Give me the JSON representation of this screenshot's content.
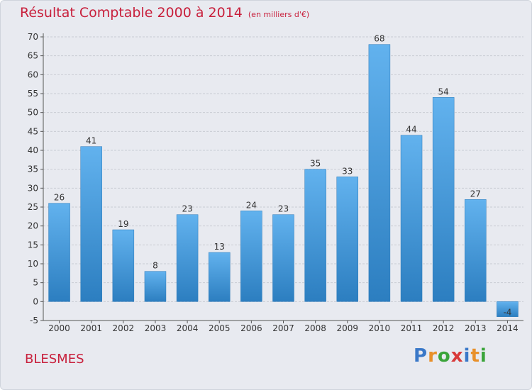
{
  "title": "Résultat Comptable 2000 à 2014",
  "unit_note": "(en milliers d'€)",
  "commune": "BLESMES",
  "logo": {
    "letters": [
      "P",
      "r",
      "o",
      "x",
      "i",
      "t",
      "i"
    ],
    "colors": [
      "#3a78c8",
      "#e8902a",
      "#3aa43a",
      "#d83a3a",
      "#3a78c8",
      "#e8902a",
      "#3aa43a"
    ]
  },
  "colors": {
    "title": "#c8203c",
    "bar_top": "#62b2ee",
    "bar_bottom": "#2c7ec0"
  },
  "chart_data": {
    "type": "bar",
    "title": "Résultat Comptable 2000 à 2014",
    "subtitle": "(en milliers d'€)",
    "categories": [
      "2000",
      "2001",
      "2002",
      "2003",
      "2004",
      "2005",
      "2006",
      "2007",
      "2008",
      "2009",
      "2010",
      "2011",
      "2012",
      "2013",
      "2014"
    ],
    "values": [
      26,
      41,
      19,
      8,
      23,
      13,
      24,
      23,
      35,
      33,
      68,
      44,
      54,
      27,
      -4
    ],
    "data_labels": [
      "26",
      "41",
      "19",
      "8",
      "23",
      "13",
      "24",
      "23",
      "35",
      "33",
      "68",
      "44",
      "54",
      "27",
      "-4"
    ],
    "ylim": [
      -5,
      70
    ],
    "yticks": [
      -5,
      0,
      5,
      10,
      15,
      20,
      25,
      30,
      35,
      40,
      45,
      50,
      55,
      60,
      65,
      70
    ],
    "grid": true,
    "xlabel": "",
    "ylabel": ""
  }
}
